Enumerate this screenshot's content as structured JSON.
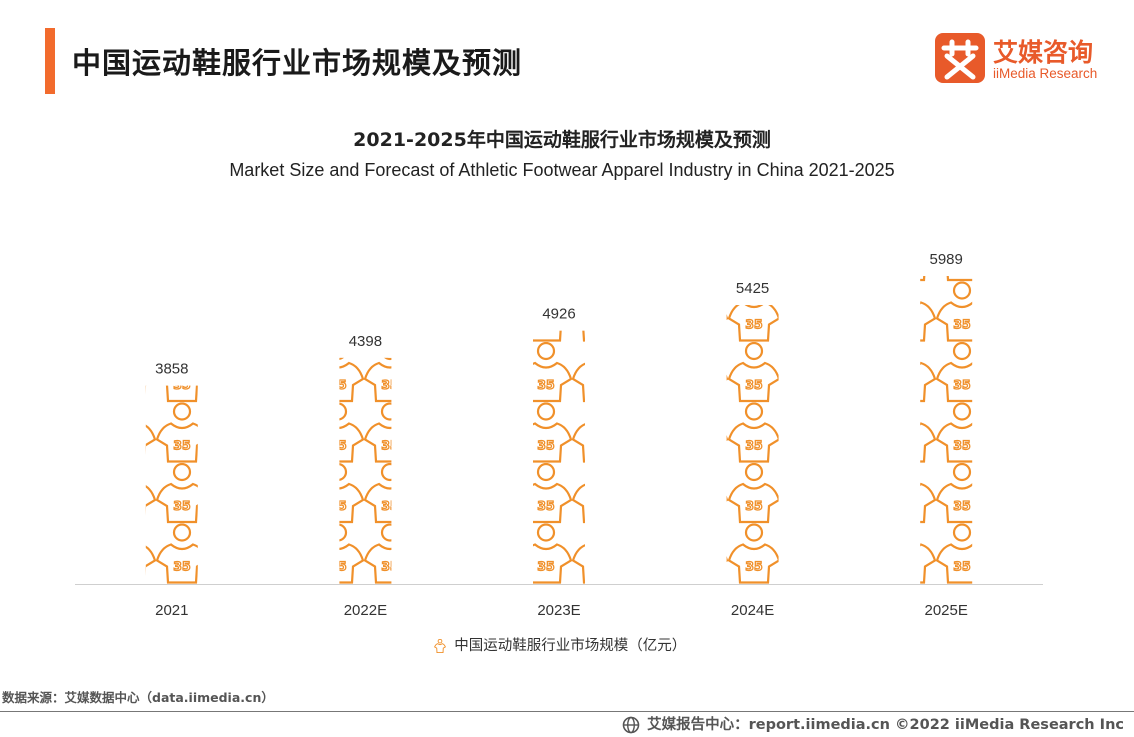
{
  "header": {
    "title": "中国运动鞋服行业市场规模及预测",
    "logo_cn": "艾媒咨询",
    "logo_en": "iiMedia Research",
    "logo_mark_icon": "ai-character-logo-icon",
    "accent_color": "#f26b2d",
    "brand_color": "#e85a2a"
  },
  "chart_data": {
    "type": "bar",
    "title": "2021-2025年中国运动鞋服行业市场规模及预测",
    "subtitle": "Market Size and Forecast of Athletic Footwear Apparel Industry in China 2021-2025",
    "categories": [
      "2021",
      "2022E",
      "2023E",
      "2024E",
      "2025E"
    ],
    "series": [
      {
        "name": "中国运动鞋服行业市场规模（亿元）",
        "values": [
          3858,
          4398,
          4926,
          5425,
          5989
        ],
        "color": "#f0902a"
      }
    ],
    "mark": "jersey-pictogram",
    "mark_text": "35",
    "legend_position": "bottom",
    "grid": false
  },
  "footer": {
    "source": "数据来源：艾媒数据中心（data.iimedia.cn）",
    "report": "艾媒报告中心：report.iimedia.cn  ©2022  iiMedia Research  Inc"
  }
}
